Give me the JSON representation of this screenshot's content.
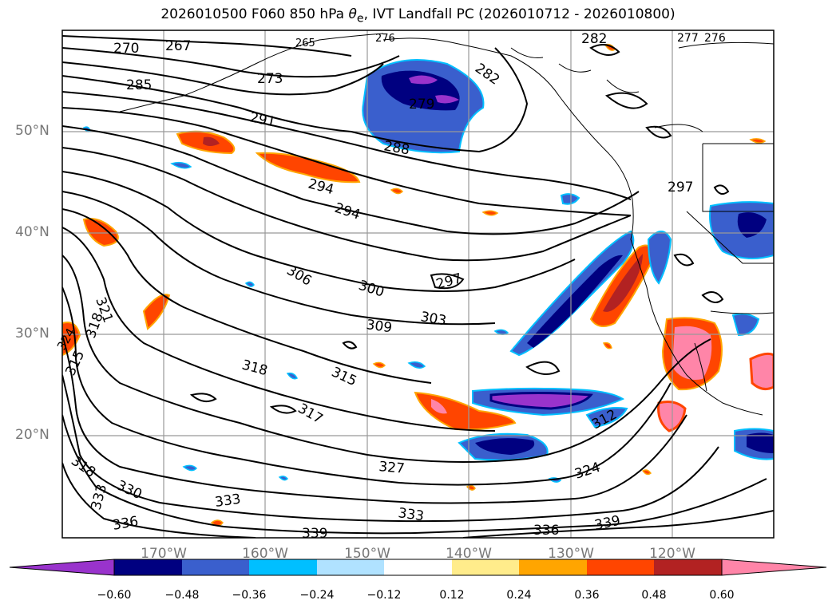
{
  "figure": {
    "title": "2026010500 F060 850 hPa θe, IVT Landfall PC (2026010712 - 2026010800)",
    "title_parts": {
      "prefix": "2026010500 F060 850 hPa ",
      "theta": "θ",
      "sub": "e",
      "suffix": ", IVT Landfall PC (2026010712 - 2026010800)"
    }
  },
  "axes": {
    "lat_labels": [
      "50°N",
      "40°N",
      "30°N",
      "20°N"
    ],
    "lon_labels": [
      "170°W",
      "160°W",
      "150°W",
      "140°W",
      "130°W",
      "120°W"
    ]
  },
  "contour_labels": {
    "items": [
      "270",
      "267",
      "265",
      "276",
      "282",
      "277",
      "276",
      "285",
      "273",
      "282",
      "279",
      "291",
      "288",
      "294",
      "294",
      "297",
      "306",
      "300",
      "297",
      "321",
      "318",
      "303",
      "309",
      "324",
      "315",
      "318",
      "315",
      "312",
      "317",
      "318",
      "327",
      "324",
      "330",
      "333",
      "333",
      "336",
      "333",
      "336",
      "339",
      "339"
    ]
  },
  "colorbar": {
    "ticks": [
      "−0.60",
      "−0.48",
      "−0.36",
      "−0.24",
      "−0.12",
      "0.12",
      "0.24",
      "0.36",
      "0.48",
      "0.60"
    ],
    "colors": {
      "under": "#9933cc",
      "bins": [
        "#000080",
        "#3a5fcd",
        "#00bfff",
        "#b0e2ff",
        "#ffffff",
        "#ffec8b",
        "#ffa500",
        "#ff4500",
        "#b22222"
      ],
      "over": "#ff85a8"
    }
  }
}
